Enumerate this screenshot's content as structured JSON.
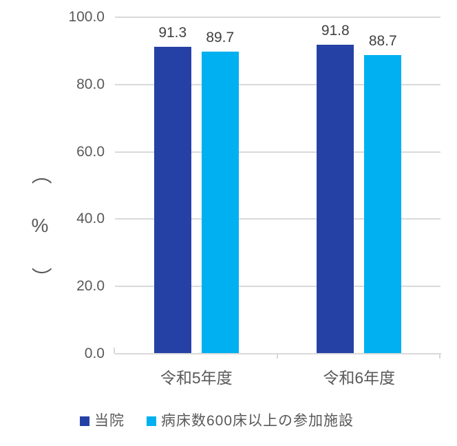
{
  "chart_data": {
    "type": "bar",
    "title": "",
    "categories": [
      "令和5年度",
      "令和6年度"
    ],
    "series": [
      {
        "name": "当院",
        "color": "#2641A5",
        "values": [
          91.3,
          91.8
        ],
        "data_labels": [
          "91.3",
          "91.8"
        ]
      },
      {
        "name": "病床数600床以上の参加施設",
        "color": "#00B0F0",
        "values": [
          89.7,
          88.7
        ],
        "data_labels": [
          "89.7",
          "88.7"
        ]
      }
    ],
    "xlabel": "",
    "ylabel": "（%）",
    "ylabel_parts": {
      "open": "（",
      "unit": "%",
      "close": "）"
    },
    "ylim": [
      0,
      100
    ],
    "ytick_step": 20,
    "yticks": [
      "0.0",
      "20.0",
      "40.0",
      "60.0",
      "80.0",
      "100.0"
    ],
    "grid": true,
    "legend_position": "bottom"
  },
  "colors": {
    "background": "#FFFFFF",
    "gridline": "#D9D9D9",
    "axis_line": "#D9D9D9",
    "tick_label": "#595959",
    "category_label": "#595959",
    "data_label": "#404040",
    "legend_text": "#595959"
  }
}
